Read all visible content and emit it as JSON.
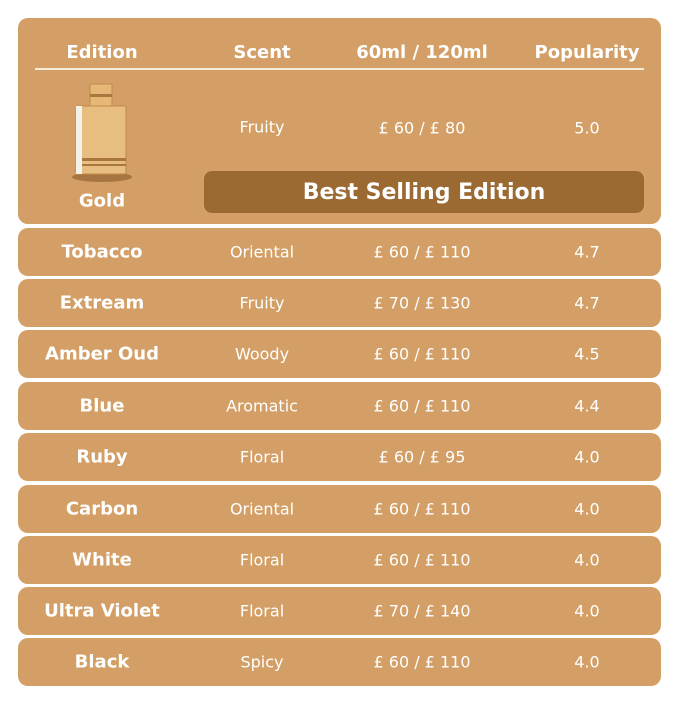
{
  "headers": {
    "edition": "Edition",
    "scent": "Scent",
    "price": "60ml / 120ml",
    "popularity": "Popularity"
  },
  "featured": {
    "name": "Gold",
    "scent": "Fruity",
    "price": "£ 60 / £ 80",
    "popularity": "5.0",
    "badge": "Best Selling Edition",
    "image": "perfume-bottle"
  },
  "rows": [
    {
      "name": "Tobacco",
      "scent": "Oriental",
      "price": "£ 60 / £ 110",
      "popularity": "4.7"
    },
    {
      "name": "Extream",
      "scent": "Fruity",
      "price": "£ 70 / £ 130",
      "popularity": "4.7"
    },
    {
      "name": "Amber Oud",
      "scent": "Woody",
      "price": "£ 60 / £ 110",
      "popularity": "4.5"
    },
    {
      "name": "Blue",
      "scent": "Aromatic",
      "price": "£ 60 / £ 110",
      "popularity": "4.4"
    },
    {
      "name": "Ruby",
      "scent": "Floral",
      "price": "£ 60 / £ 95",
      "popularity": "4.0"
    },
    {
      "name": "Carbon",
      "scent": "Oriental",
      "price": "£ 60 / £ 110",
      "popularity": "4.0"
    },
    {
      "name": "White",
      "scent": "Floral",
      "price": "£ 60 / £ 110",
      "popularity": "4.0"
    },
    {
      "name": "Ultra Violet",
      "scent": "Floral",
      "price": "£ 70 / £ 140",
      "popularity": "4.0"
    },
    {
      "name": "Black",
      "scent": "Spicy",
      "price": "£ 60 / £ 110",
      "popularity": "4.0"
    }
  ],
  "colors": {
    "card": "#D39F66",
    "banner": "#9B6A33",
    "text": "#FFFFFF"
  }
}
